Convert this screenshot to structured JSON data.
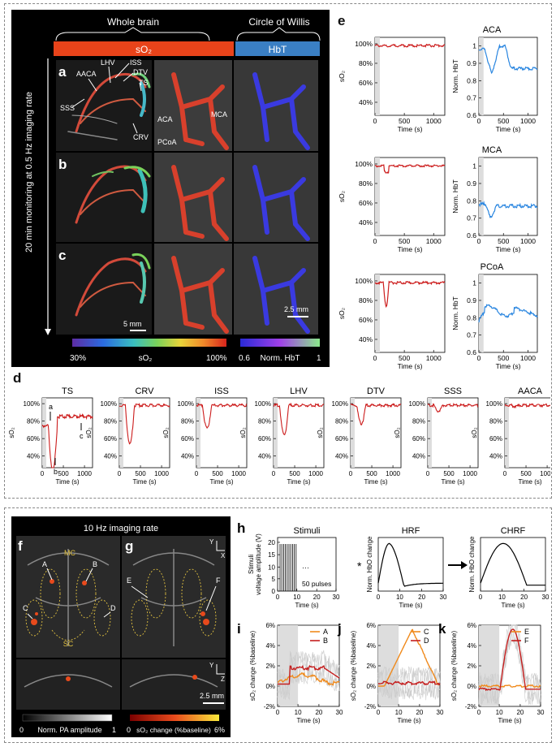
{
  "top": {
    "header_whole_brain": "Whole brain",
    "header_cow": "Circle of Willis",
    "bar_so2": "sO₂",
    "bar_hbt": "HbT",
    "vertical_label": "20 min monitoring at 0.5 Hz imaging rate",
    "rows": [
      "a",
      "b",
      "c"
    ],
    "vessel_labels": [
      "AACA",
      "LHV",
      "ISS",
      "DTV",
      "TS",
      "SSS",
      "CRV"
    ],
    "cow_labels": [
      "ACA",
      "MCA",
      "PCoA"
    ],
    "scale_a": "5 mm",
    "scale_b": "2.5 mm",
    "cbar_so2_min": "30%",
    "cbar_so2_label": "sO₂",
    "cbar_so2_max": "100%",
    "cbar_hbt_min": "0.6",
    "cbar_hbt_label": "Norm. HbT",
    "cbar_hbt_max": "1",
    "colors": {
      "so2_bar": "#e8431a",
      "hbt_bar": "#3a7fc4",
      "red_line": "#cc1c1c",
      "blue_line": "#2a86e0"
    }
  },
  "panel_e": {
    "letter": "e",
    "x_label": "Time (s)",
    "so2_label": "sO₂",
    "hbt_label": "Norm. HbT",
    "so2_ticks": [
      "100%",
      "80%",
      "60%",
      "40%"
    ],
    "hbt_ticks": [
      "1",
      "0.9",
      "0.8",
      "0.7",
      "0.6"
    ],
    "x_ticks": [
      "0",
      "500",
      "1000"
    ],
    "titles": [
      "ACA",
      "MCA",
      "PCoA"
    ]
  },
  "panel_d": {
    "letter": "d",
    "titles": [
      "TS",
      "CRV",
      "ISS",
      "LHV",
      "DTV",
      "SSS",
      "AACA"
    ],
    "x_label": "Time (s)",
    "y_label": "sO₂",
    "y_ticks": [
      "100%",
      "80%",
      "60%",
      "40%"
    ],
    "x_ticks": [
      "0",
      "500",
      "1000"
    ],
    "markers": [
      "a",
      "b",
      "c"
    ]
  },
  "bottom": {
    "imaging_rate": "10 Hz imaging rate",
    "letters": [
      "f",
      "g",
      "h",
      "i",
      "j",
      "k"
    ],
    "f_labels": [
      "MC",
      "A",
      "B",
      "C",
      "D",
      "SC"
    ],
    "g_labels": [
      "E",
      "F"
    ],
    "axes_top": [
      "Y",
      "X"
    ],
    "axes_bottom": [
      "Y",
      "Z"
    ],
    "scale": "2.5 mm",
    "cbar_pa_min": "0",
    "cbar_pa_label": "Norm. PA amplitude",
    "cbar_pa_max": "1",
    "cbar_so2_min": "0",
    "cbar_so2_label": "sO₂ change (%baseline)",
    "cbar_so2_max": "6%"
  },
  "panel_h": {
    "titles": [
      "Stimuli",
      "HRF",
      "CHRF"
    ],
    "stim_ylabel_1": "Stimuli",
    "stim_ylabel_2": "voltage amplitude (V)",
    "stim_yticks": [
      "20",
      "15",
      "10",
      "5",
      "0"
    ],
    "x_ticks": [
      "0",
      "10",
      "20",
      "30"
    ],
    "x_label": "Time (s)",
    "pulses": "50 pulses",
    "ellipsis": "···",
    "hbo_label": "Norm. HbO change",
    "star": "*"
  },
  "panel_ijk": {
    "y_label": "sO₂ change (%baseline)",
    "y_ticks": [
      "6%",
      "4%",
      "2%",
      "0%",
      "-2%"
    ],
    "x_ticks": [
      "0",
      "10",
      "20",
      "30"
    ],
    "x_label": "Time (s)",
    "i_legend": [
      "A",
      "B"
    ],
    "j_legend": [
      "C",
      "D"
    ],
    "k_legend": [
      "E",
      "F"
    ],
    "legend_colors": [
      "#f08a1c",
      "#c41e1e"
    ]
  }
}
